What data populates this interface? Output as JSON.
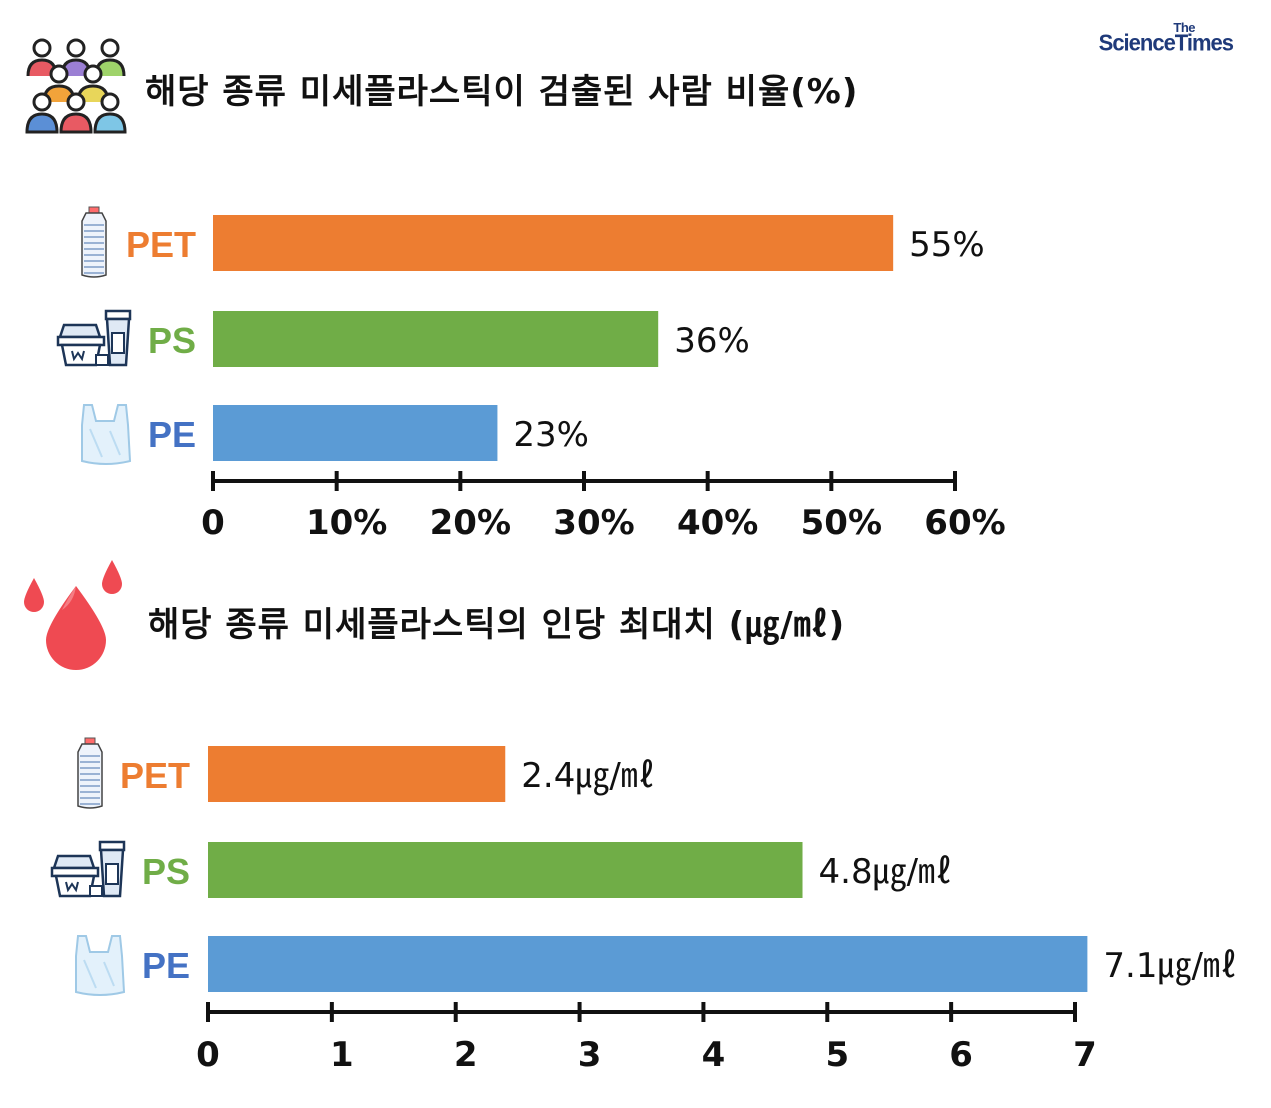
{
  "logo": {
    "line1": "The",
    "line2": "ScienceTimes"
  },
  "icons": {
    "people": "people-group-icon",
    "drops": "blood-drops-icon",
    "bottle": "plastic-bottle-icon",
    "container": "food-container-cup-icon",
    "bag": "plastic-bag-icon"
  },
  "colors": {
    "PET": "#ED7D31",
    "PS": "#70AD47",
    "PE": "#5B9BD5",
    "PE_label": "#4472C4"
  },
  "chart_data": [
    {
      "type": "bar",
      "orientation": "horizontal",
      "title": "해당 종류 미세플라스틱이 검출된 사람 비율(%)",
      "categories": [
        "PET",
        "PS",
        "PE"
      ],
      "values": [
        55,
        36,
        23
      ],
      "value_labels": [
        "55%",
        "36%",
        "23%"
      ],
      "xlim": [
        0,
        60
      ],
      "ticks": [
        0,
        10,
        20,
        30,
        40,
        50,
        60
      ],
      "tick_labels": [
        "0",
        "10%",
        "20%",
        "30%",
        "40%",
        "50%",
        "60%"
      ],
      "grid": false
    },
    {
      "type": "bar",
      "orientation": "horizontal",
      "title": "해당 종류 미세플라스틱의 인당 최대치 (㎍/㎖)",
      "categories": [
        "PET",
        "PS",
        "PE"
      ],
      "values": [
        2.4,
        4.8,
        7.1
      ],
      "value_labels": [
        "2.4㎍/㎖",
        "4.8㎍/㎖",
        "7.1㎍/㎖"
      ],
      "xlim": [
        0,
        7
      ],
      "ticks": [
        0,
        1,
        2,
        3,
        4,
        5,
        6,
        7
      ],
      "tick_labels": [
        "0",
        "1",
        "2",
        "3",
        "4",
        "5",
        "6",
        "7"
      ],
      "grid": false
    }
  ]
}
